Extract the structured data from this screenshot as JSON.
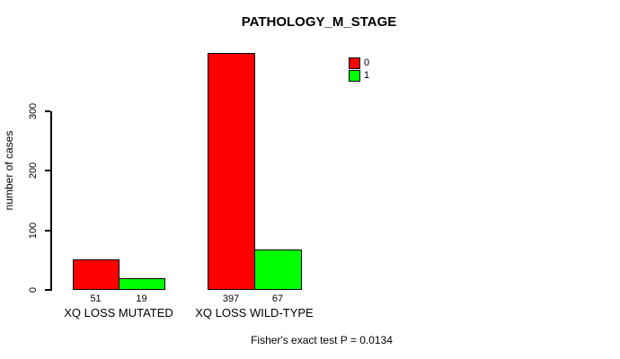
{
  "chart_data": {
    "type": "bar",
    "title": "PATHOLOGY_M_STAGE",
    "ylabel": "number of cases",
    "xlabel": "",
    "categories": [
      "XQ LOSS MUTATED",
      "XQ LOSS WILD-TYPE"
    ],
    "series": [
      {
        "name": "0",
        "color": "#ff0000",
        "values": [
          51,
          397
        ]
      },
      {
        "name": "1",
        "color": "#00ff00",
        "values": [
          19,
          67
        ]
      }
    ],
    "bar_value_labels": [
      [
        "51",
        "19"
      ],
      [
        "397",
        "67"
      ]
    ],
    "yticks": [
      0,
      100,
      200,
      300
    ],
    "ylim": [
      0,
      400
    ],
    "grid": false,
    "legend_position": "top-right",
    "caption": "Fisher's exact test P = 0.0134",
    "bar_border_color": "#000000",
    "background_color": "#ffffff"
  }
}
